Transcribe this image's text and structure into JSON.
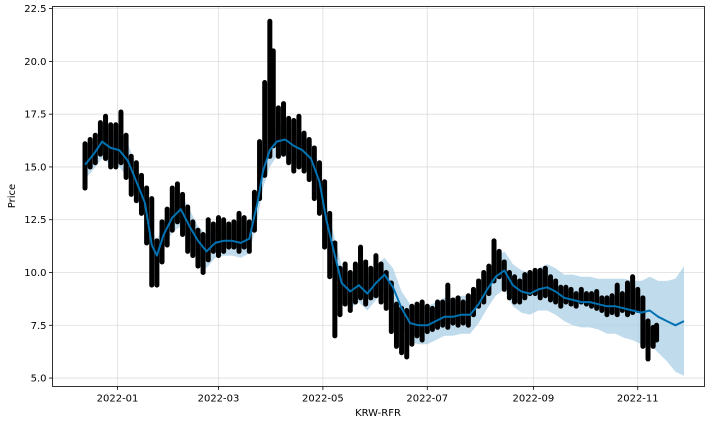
{
  "chart_data": {
    "type": "line",
    "title": "",
    "xlabel": "KRW-RFR",
    "ylabel": "Price",
    "xlim": [
      "2021-11-24",
      "2022-12-10"
    ],
    "ylim": [
      4.6,
      22.6
    ],
    "grid": true,
    "x_ticks": [
      {
        "date": "2022-01-01",
        "label": "2022-01"
      },
      {
        "date": "2022-03-01",
        "label": "2022-03"
      },
      {
        "date": "2022-05-01",
        "label": "2022-05"
      },
      {
        "date": "2022-07-01",
        "label": "2022-07"
      },
      {
        "date": "2022-09-01",
        "label": "2022-09"
      },
      {
        "date": "2022-11-01",
        "label": "2022-11"
      }
    ],
    "y_ticks": [
      {
        "value": 5.0,
        "label": "5.0"
      },
      {
        "value": 7.5,
        "label": "7.5"
      },
      {
        "value": 10.0,
        "label": "10.0"
      },
      {
        "value": 12.5,
        "label": "12.5"
      },
      {
        "value": 15.0,
        "label": "15.0"
      },
      {
        "value": 17.5,
        "label": "17.5"
      },
      {
        "value": 20.0,
        "label": "20.0"
      },
      {
        "value": 22.5,
        "label": "22.5"
      }
    ],
    "colors": {
      "forecast": "#0072B2",
      "interval": "#A9CFE6",
      "observed": "#000000",
      "grid": "#DDDDDD"
    },
    "series": [
      {
        "kind": "line",
        "x": [
          "2021-12-13",
          "2021-12-18",
          "2021-12-23",
          "2021-12-28",
          "2022-01-02",
          "2022-01-07",
          "2022-01-12",
          "2022-01-17",
          "2022-01-21",
          "2022-01-24",
          "2022-01-28",
          "2022-02-02",
          "2022-02-07",
          "2022-02-12",
          "2022-02-17",
          "2022-02-22",
          "2022-02-27",
          "2022-03-04",
          "2022-03-09",
          "2022-03-14",
          "2022-03-19",
          "2022-03-24",
          "2022-03-27",
          "2022-03-31",
          "2022-04-04",
          "2022-04-09",
          "2022-04-14",
          "2022-04-19",
          "2022-04-24",
          "2022-04-29",
          "2022-05-03",
          "2022-05-08",
          "2022-05-12",
          "2022-05-17",
          "2022-05-22",
          "2022-05-27",
          "2022-06-01",
          "2022-06-06",
          "2022-06-11",
          "2022-06-16",
          "2022-06-21",
          "2022-06-26",
          "2022-07-01",
          "2022-07-06",
          "2022-07-11",
          "2022-07-16",
          "2022-07-21",
          "2022-07-26",
          "2022-07-31",
          "2022-08-05",
          "2022-08-10",
          "2022-08-15",
          "2022-08-20",
          "2022-08-25",
          "2022-08-30",
          "2022-09-04",
          "2022-09-09",
          "2022-09-14",
          "2022-09-19",
          "2022-09-24",
          "2022-09-29",
          "2022-10-04",
          "2022-10-09",
          "2022-10-14",
          "2022-10-19",
          "2022-10-24",
          "2022-10-29",
          "2022-11-03",
          "2022-11-08",
          "2022-11-13",
          "2022-11-18",
          "2022-11-23",
          "2022-11-28"
        ],
        "y": [
          15.1,
          15.6,
          16.2,
          15.9,
          15.8,
          15.3,
          14.3,
          13.3,
          11.3,
          10.8,
          11.8,
          12.6,
          13.0,
          12.2,
          11.5,
          11.0,
          11.4,
          11.5,
          11.5,
          11.4,
          11.6,
          13.4,
          14.8,
          15.8,
          16.2,
          16.3,
          16.0,
          15.8,
          15.4,
          14.3,
          12.5,
          10.8,
          9.5,
          9.1,
          9.4,
          9.0,
          9.5,
          9.9,
          9.3,
          8.3,
          7.6,
          7.5,
          7.5,
          7.7,
          7.9,
          7.9,
          8.0,
          8.0,
          8.5,
          9.2,
          9.8,
          10.1,
          9.4,
          9.1,
          9.0,
          9.2,
          9.3,
          9.1,
          8.8,
          8.7,
          8.6,
          8.6,
          8.5,
          8.4,
          8.4,
          8.3,
          8.2,
          8.1,
          8.2,
          7.9,
          7.7,
          7.5,
          7.7
        ]
      },
      {
        "kind": "interval-upper",
        "x": [
          "2021-12-13",
          "2021-12-18",
          "2021-12-23",
          "2021-12-28",
          "2022-01-02",
          "2022-01-07",
          "2022-01-12",
          "2022-01-17",
          "2022-01-21",
          "2022-01-24",
          "2022-01-28",
          "2022-02-02",
          "2022-02-07",
          "2022-02-12",
          "2022-02-17",
          "2022-02-22",
          "2022-02-27",
          "2022-03-04",
          "2022-03-09",
          "2022-03-14",
          "2022-03-19",
          "2022-03-24",
          "2022-03-27",
          "2022-03-31",
          "2022-04-04",
          "2022-04-09",
          "2022-04-14",
          "2022-04-19",
          "2022-04-24",
          "2022-04-29",
          "2022-05-03",
          "2022-05-08",
          "2022-05-12",
          "2022-05-17",
          "2022-05-22",
          "2022-05-27",
          "2022-06-01",
          "2022-06-06",
          "2022-06-11",
          "2022-06-16",
          "2022-06-21",
          "2022-06-26",
          "2022-07-01",
          "2022-07-06",
          "2022-07-11",
          "2022-07-16",
          "2022-07-21",
          "2022-07-26",
          "2022-07-31",
          "2022-08-05",
          "2022-08-10",
          "2022-08-15",
          "2022-08-20",
          "2022-08-25",
          "2022-08-30",
          "2022-09-04",
          "2022-09-09",
          "2022-09-14",
          "2022-09-19",
          "2022-09-24",
          "2022-09-29",
          "2022-10-04",
          "2022-10-09",
          "2022-10-14",
          "2022-10-19",
          "2022-10-24",
          "2022-10-29",
          "2022-11-03",
          "2022-11-08",
          "2022-11-13",
          "2022-11-18",
          "2022-11-23",
          "2022-11-28"
        ],
        "y": [
          15.8,
          16.3,
          17.0,
          16.7,
          16.6,
          16.1,
          15.1,
          14.0,
          12.0,
          11.5,
          12.5,
          13.3,
          13.8,
          13.0,
          12.2,
          11.8,
          12.1,
          12.2,
          12.2,
          12.1,
          12.3,
          14.2,
          15.6,
          16.6,
          16.9,
          17.1,
          16.8,
          16.6,
          16.2,
          15.1,
          13.3,
          11.6,
          10.3,
          9.9,
          10.2,
          9.8,
          10.3,
          10.7,
          10.2,
          9.1,
          8.5,
          8.4,
          8.4,
          8.6,
          8.8,
          8.8,
          8.9,
          8.9,
          9.4,
          10.1,
          10.7,
          11.0,
          10.4,
          10.1,
          10.0,
          10.2,
          10.4,
          10.2,
          9.9,
          9.9,
          9.8,
          9.8,
          9.7,
          9.7,
          9.7,
          9.7,
          9.6,
          9.6,
          9.8,
          9.6,
          9.6,
          9.7,
          10.3
        ]
      },
      {
        "kind": "interval-lower",
        "x": [
          "2021-12-13",
          "2021-12-18",
          "2021-12-23",
          "2021-12-28",
          "2022-01-02",
          "2022-01-07",
          "2022-01-12",
          "2022-01-17",
          "2022-01-21",
          "2022-01-24",
          "2022-01-28",
          "2022-02-02",
          "2022-02-07",
          "2022-02-12",
          "2022-02-17",
          "2022-02-22",
          "2022-02-27",
          "2022-03-04",
          "2022-03-09",
          "2022-03-14",
          "2022-03-19",
          "2022-03-24",
          "2022-03-27",
          "2022-03-31",
          "2022-04-04",
          "2022-04-09",
          "2022-04-14",
          "2022-04-19",
          "2022-04-24",
          "2022-04-29",
          "2022-05-03",
          "2022-05-08",
          "2022-05-12",
          "2022-05-17",
          "2022-05-22",
          "2022-05-27",
          "2022-06-01",
          "2022-06-06",
          "2022-06-11",
          "2022-06-16",
          "2022-06-21",
          "2022-06-26",
          "2022-07-01",
          "2022-07-06",
          "2022-07-11",
          "2022-07-16",
          "2022-07-21",
          "2022-07-26",
          "2022-07-31",
          "2022-08-05",
          "2022-08-10",
          "2022-08-15",
          "2022-08-20",
          "2022-08-25",
          "2022-08-30",
          "2022-09-04",
          "2022-09-09",
          "2022-09-14",
          "2022-09-19",
          "2022-09-24",
          "2022-09-29",
          "2022-10-04",
          "2022-10-09",
          "2022-10-14",
          "2022-10-19",
          "2022-10-24",
          "2022-10-29",
          "2022-11-03",
          "2022-11-08",
          "2022-11-13",
          "2022-11-18",
          "2022-11-23",
          "2022-11-28"
        ],
        "y": [
          14.4,
          14.9,
          15.4,
          15.1,
          15.0,
          14.5,
          13.5,
          12.6,
          10.6,
          10.1,
          11.1,
          11.9,
          12.2,
          11.4,
          10.8,
          10.2,
          10.7,
          10.8,
          10.8,
          10.7,
          10.9,
          12.6,
          14.0,
          15.0,
          15.5,
          15.5,
          15.2,
          15.0,
          14.6,
          13.5,
          11.7,
          10.0,
          8.7,
          8.3,
          8.6,
          8.2,
          8.7,
          9.1,
          8.4,
          7.5,
          6.7,
          6.6,
          6.6,
          6.8,
          7.0,
          7.0,
          7.1,
          7.1,
          7.6,
          8.3,
          8.9,
          9.2,
          8.4,
          8.1,
          8.0,
          8.2,
          8.2,
          8.0,
          7.7,
          7.5,
          7.4,
          7.4,
          7.3,
          7.1,
          7.1,
          6.9,
          6.8,
          6.6,
          6.6,
          6.2,
          5.8,
          5.3,
          5.1
        ]
      },
      {
        "kind": "observed-points",
        "x": [
          "2021-12-13",
          "2021-12-16",
          "2021-12-19",
          "2021-12-22",
          "2021-12-25",
          "2021-12-28",
          "2021-12-31",
          "2022-01-03",
          "2022-01-06",
          "2022-01-09",
          "2022-01-12",
          "2022-01-15",
          "2022-01-18",
          "2022-01-21",
          "2022-01-24",
          "2022-01-27",
          "2022-01-30",
          "2022-02-02",
          "2022-02-05",
          "2022-02-08",
          "2022-02-11",
          "2022-02-14",
          "2022-02-17",
          "2022-02-20",
          "2022-02-23",
          "2022-02-26",
          "2022-03-01",
          "2022-03-04",
          "2022-03-07",
          "2022-03-10",
          "2022-03-13",
          "2022-03-16",
          "2022-03-19",
          "2022-03-22",
          "2022-03-25",
          "2022-03-28",
          "2022-03-31",
          "2022-04-02",
          "2022-04-05",
          "2022-04-08",
          "2022-04-11",
          "2022-04-14",
          "2022-04-17",
          "2022-04-20",
          "2022-04-23",
          "2022-04-26",
          "2022-04-29",
          "2022-05-02",
          "2022-05-05",
          "2022-05-08",
          "2022-05-11",
          "2022-05-14",
          "2022-05-17",
          "2022-05-20",
          "2022-05-23",
          "2022-05-26",
          "2022-05-29",
          "2022-06-01",
          "2022-06-04",
          "2022-06-07",
          "2022-06-10",
          "2022-06-13",
          "2022-06-16",
          "2022-06-19",
          "2022-06-22",
          "2022-06-25",
          "2022-06-28",
          "2022-07-01",
          "2022-07-04",
          "2022-07-07",
          "2022-07-10",
          "2022-07-13",
          "2022-07-16",
          "2022-07-19",
          "2022-07-22",
          "2022-07-25",
          "2022-07-28",
          "2022-07-31",
          "2022-08-03",
          "2022-08-06",
          "2022-08-09",
          "2022-08-12",
          "2022-08-15",
          "2022-08-18",
          "2022-08-21",
          "2022-08-24",
          "2022-08-27",
          "2022-08-30",
          "2022-09-02",
          "2022-09-05",
          "2022-09-08",
          "2022-09-11",
          "2022-09-14",
          "2022-09-17",
          "2022-09-20",
          "2022-09-23",
          "2022-09-26",
          "2022-09-29",
          "2022-10-02",
          "2022-10-05",
          "2022-10-08",
          "2022-10-11",
          "2022-10-14",
          "2022-10-17",
          "2022-10-20",
          "2022-10-23",
          "2022-10-26",
          "2022-10-29",
          "2022-11-01",
          "2022-11-04",
          "2022-11-07",
          "2022-11-10",
          "2022-11-12"
        ],
        "y": [
          [
            14.0,
            16.1
          ],
          [
            15.0,
            16.3
          ],
          [
            15.2,
            16.5
          ],
          [
            15.6,
            17.1
          ],
          [
            15.4,
            17.4
          ],
          [
            15.0,
            17.0
          ],
          [
            15.0,
            17.0
          ],
          [
            15.2,
            17.6
          ],
          [
            14.5,
            16.5
          ],
          [
            13.7,
            15.5
          ],
          [
            13.4,
            15.2
          ],
          [
            12.8,
            14.6
          ],
          [
            11.4,
            14.0
          ],
          [
            9.4,
            13.5
          ],
          [
            9.4,
            11.5
          ],
          [
            10.5,
            12.4
          ],
          [
            11.3,
            13.0
          ],
          [
            12.0,
            14.0
          ],
          [
            12.4,
            14.2
          ],
          [
            11.8,
            13.7
          ],
          [
            11.0,
            13.1
          ],
          [
            10.8,
            12.4
          ],
          [
            10.3,
            12.0
          ],
          [
            10.0,
            11.8
          ],
          [
            10.6,
            12.5
          ],
          [
            11.0,
            12.3
          ],
          [
            10.8,
            12.6
          ],
          [
            11.0,
            12.5
          ],
          [
            11.2,
            12.3
          ],
          [
            11.2,
            12.4
          ],
          [
            11.0,
            12.8
          ],
          [
            11.2,
            12.6
          ],
          [
            11.0,
            12.4
          ],
          [
            12.0,
            13.8
          ],
          [
            13.5,
            16.2
          ],
          [
            14.6,
            19.0
          ],
          [
            15.5,
            21.9
          ],
          [
            16.0,
            20.5
          ],
          [
            15.5,
            17.8
          ],
          [
            15.6,
            18.0
          ],
          [
            15.2,
            17.3
          ],
          [
            14.8,
            17.2
          ],
          [
            15.0,
            17.4
          ],
          [
            14.8,
            16.6
          ],
          [
            14.4,
            16.3
          ],
          [
            13.5,
            15.9
          ],
          [
            12.8,
            15.2
          ],
          [
            11.2,
            14.3
          ],
          [
            9.8,
            12.8
          ],
          [
            7.0,
            11.4
          ],
          [
            8.0,
            10.2
          ],
          [
            8.5,
            10.4
          ],
          [
            8.2,
            10.0
          ],
          [
            8.6,
            10.4
          ],
          [
            8.8,
            11.2
          ],
          [
            8.5,
            10.5
          ],
          [
            8.8,
            10.2
          ],
          [
            8.9,
            10.8
          ],
          [
            8.6,
            10.4
          ],
          [
            8.3,
            10.0
          ],
          [
            7.2,
            9.5
          ],
          [
            6.5,
            8.5
          ],
          [
            6.2,
            8.3
          ],
          [
            6.0,
            8.2
          ],
          [
            6.6,
            8.4
          ],
          [
            7.0,
            8.5
          ],
          [
            6.8,
            8.6
          ],
          [
            7.2,
            8.4
          ],
          [
            7.3,
            8.3
          ],
          [
            7.4,
            8.6
          ],
          [
            7.5,
            8.6
          ],
          [
            7.4,
            9.4
          ],
          [
            7.6,
            8.7
          ],
          [
            7.5,
            8.8
          ],
          [
            7.6,
            8.6
          ],
          [
            7.5,
            8.9
          ],
          [
            8.0,
            9.2
          ],
          [
            8.4,
            9.6
          ],
          [
            8.6,
            10.0
          ],
          [
            9.0,
            10.3
          ],
          [
            9.6,
            11.5
          ],
          [
            9.8,
            11.0
          ],
          [
            9.2,
            10.5
          ],
          [
            8.8,
            10.0
          ],
          [
            8.6,
            9.8
          ],
          [
            8.6,
            9.6
          ],
          [
            8.8,
            9.9
          ],
          [
            9.0,
            10.0
          ],
          [
            9.0,
            10.1
          ],
          [
            8.8,
            10.1
          ],
          [
            8.9,
            10.2
          ],
          [
            8.7,
            9.8
          ],
          [
            8.6,
            9.6
          ],
          [
            8.4,
            9.3
          ],
          [
            8.6,
            9.3
          ],
          [
            8.5,
            9.2
          ],
          [
            8.4,
            9.0
          ],
          [
            8.6,
            9.2
          ],
          [
            8.5,
            9.0
          ],
          [
            8.4,
            9.0
          ],
          [
            8.3,
            9.1
          ],
          [
            8.2,
            8.8
          ],
          [
            8.0,
            8.8
          ],
          [
            8.1,
            8.9
          ],
          [
            8.0,
            9.4
          ],
          [
            8.2,
            9.0
          ],
          [
            8.0,
            9.5
          ],
          [
            8.1,
            9.8
          ],
          [
            8.2,
            9.2
          ],
          [
            6.5,
            8.8
          ],
          [
            5.9,
            7.7
          ],
          [
            6.5,
            7.4
          ],
          [
            6.8,
            7.5
          ]
        ]
      }
    ]
  }
}
